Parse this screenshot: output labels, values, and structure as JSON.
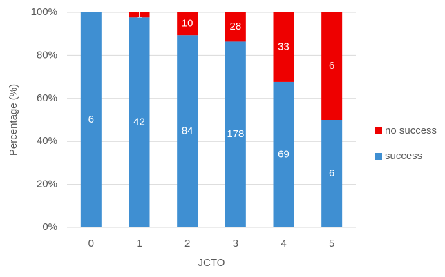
{
  "chart_data": {
    "type": "stacked_bar_100",
    "categories": [
      "0",
      "1",
      "2",
      "3",
      "4",
      "5"
    ],
    "x_label": "JCTO",
    "y_label": "Percentage (%)",
    "ylim": [
      0,
      100
    ],
    "yticks": [
      {
        "value": 0,
        "label": "0%"
      },
      {
        "value": 20,
        "label": "20%"
      },
      {
        "value": 40,
        "label": "40%"
      },
      {
        "value": 60,
        "label": "60%"
      },
      {
        "value": 80,
        "label": "80%"
      },
      {
        "value": 100,
        "label": "100%"
      }
    ],
    "grid": true,
    "legend": "right",
    "series": [
      {
        "name": "success",
        "color": "#3f8fd2",
        "values": [
          100,
          97.67,
          89.36,
          86.41,
          67.65,
          50
        ],
        "counts": [
          6,
          42,
          84,
          178,
          69,
          6
        ]
      },
      {
        "name": "no success",
        "color": "#ee0000",
        "values": [
          0,
          2.33,
          10.64,
          13.59,
          32.35,
          50
        ],
        "counts": [
          null,
          1,
          10,
          28,
          33,
          6
        ]
      }
    ]
  }
}
